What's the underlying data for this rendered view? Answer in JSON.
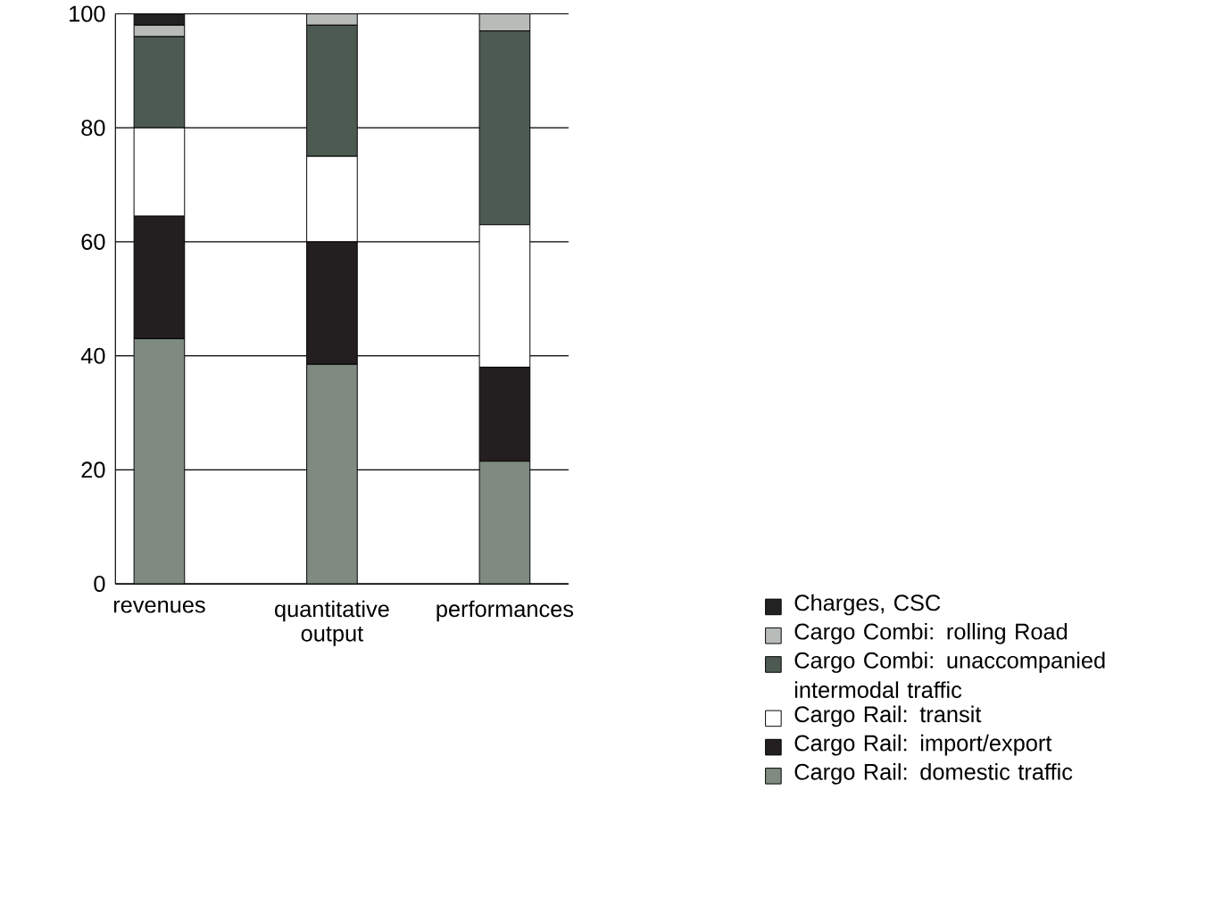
{
  "chart_data": {
    "type": "bar",
    "stacked": true,
    "categories": [
      "revenues",
      "quantitative output",
      "performances"
    ],
    "series": [
      {
        "name": "Cargo Rail: domestic traffic",
        "color": "#7f8a80",
        "values": [
          43,
          38.5,
          21.5
        ]
      },
      {
        "name": "Cargo Rail: import/export",
        "color": "#231f20",
        "values": [
          21.5,
          21.5,
          16.5
        ]
      },
      {
        "name": "Cargo Rail: transit",
        "color": "#ffffff",
        "values": [
          15.5,
          15,
          25
        ]
      },
      {
        "name": "Cargo Combi: unaccompanied intermodal traffic",
        "color": "#4d5a52",
        "values": [
          16,
          23,
          34
        ]
      },
      {
        "name": "Cargo Combi: rolling Road",
        "color": "#b8bcb8",
        "values": [
          2,
          2,
          3
        ]
      },
      {
        "name": "Charges, CSC",
        "color": "#222222",
        "values": [
          2,
          0,
          0
        ]
      }
    ],
    "ylim": [
      0,
      100
    ],
    "yticks": [
      0,
      20,
      40,
      60,
      80,
      100
    ],
    "grid": "y",
    "legend": "right"
  }
}
